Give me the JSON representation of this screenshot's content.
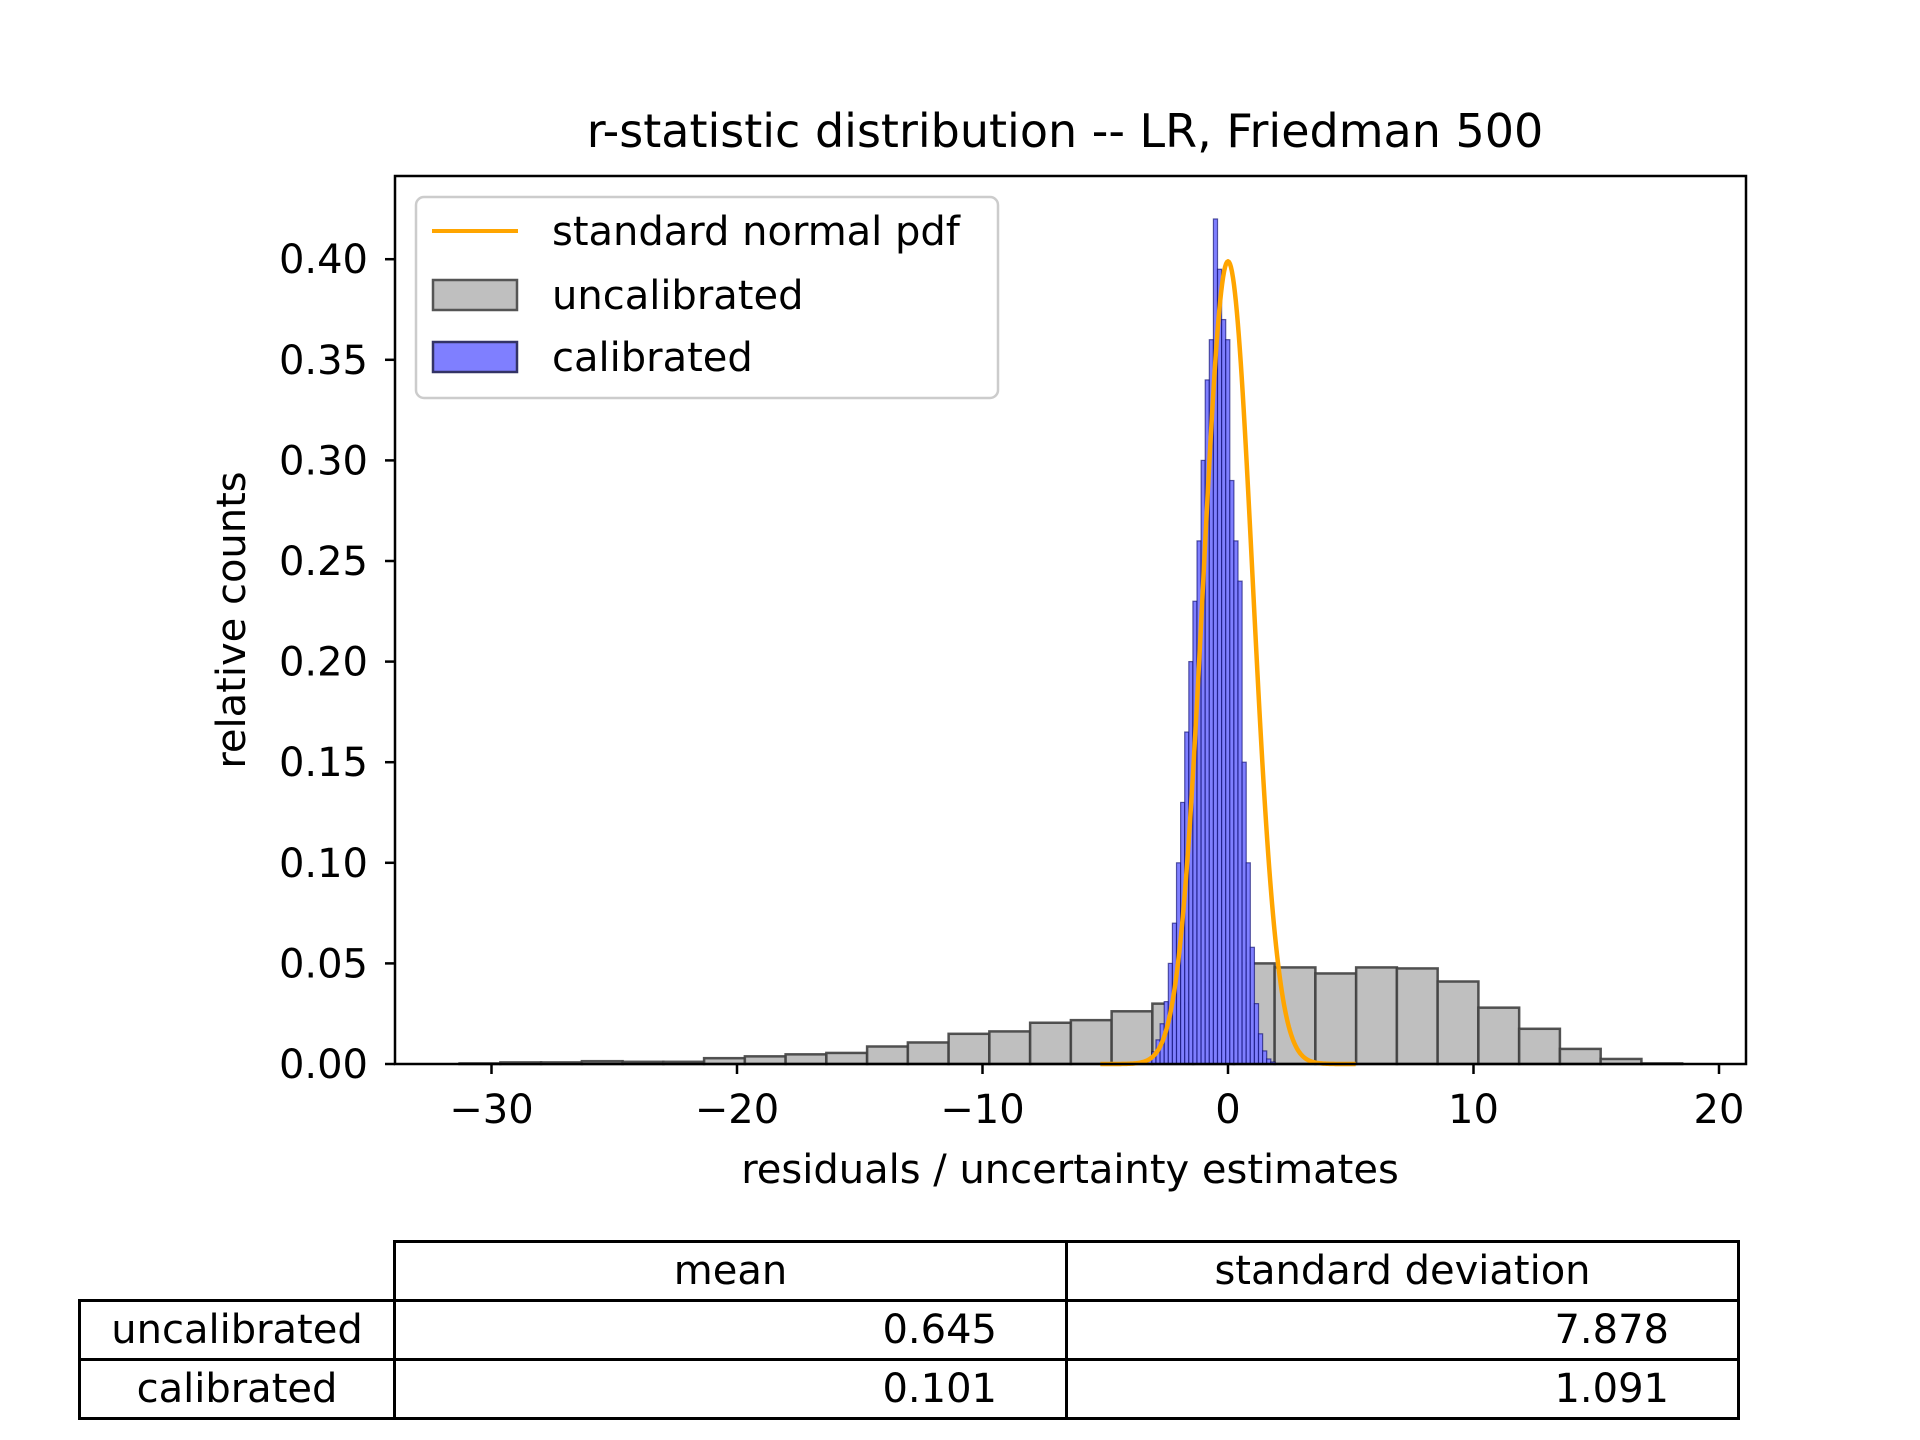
{
  "chart_data": {
    "type": "bar",
    "title": "r-statistic distribution -- LR, Friedman 500",
    "xlabel": "residuals / uncertainty estimates",
    "ylabel": "relative counts",
    "xlim": [
      -34,
      21
    ],
    "ylim": [
      0,
      0.44
    ],
    "xticks": [
      -30,
      -20,
      -10,
      0,
      10,
      20
    ],
    "xtick_labels": [
      "−30",
      "−20",
      "−10",
      "0",
      "10",
      "20"
    ],
    "yticks": [
      0.0,
      0.05,
      0.1,
      0.15,
      0.2,
      0.25,
      0.3,
      0.35,
      0.4
    ],
    "ytick_labels": [
      "0.00",
      "0.05",
      "0.10",
      "0.15",
      "0.20",
      "0.25",
      "0.30",
      "0.35",
      "0.40"
    ],
    "legend": {
      "placement": "top-left",
      "entries": [
        "standard normal pdf",
        "uncalibrated",
        "calibrated"
      ]
    },
    "series": [
      {
        "name": "uncalibrated",
        "color": "#bfbfbf",
        "edge_color": "#404040",
        "bin_start": -31.3,
        "bin_width": 1.66,
        "values": [
          0.0003,
          0.0008,
          0.0008,
          0.0014,
          0.0011,
          0.0011,
          0.0029,
          0.0038,
          0.0048,
          0.0055,
          0.0087,
          0.0107,
          0.015,
          0.0162,
          0.0205,
          0.0218,
          0.0262,
          0.03,
          0.041,
          0.05,
          0.048,
          0.045,
          0.048,
          0.0475,
          0.041,
          0.028,
          0.0175,
          0.0075,
          0.0025,
          0.0003
        ]
      },
      {
        "name": "calibrated",
        "color": "#7f7fff",
        "edge_color": "#000066",
        "bin_start": -3.6,
        "bin_width": 0.167,
        "values": [
          0.0003,
          0.0015,
          0.0025,
          0.006,
          0.012,
          0.02,
          0.031,
          0.05,
          0.07,
          0.1,
          0.13,
          0.165,
          0.2,
          0.23,
          0.26,
          0.3,
          0.34,
          0.36,
          0.42,
          0.395,
          0.37,
          0.36,
          0.29,
          0.26,
          0.24,
          0.15,
          0.1,
          0.058,
          0.03,
          0.015,
          0.0065,
          0.0025,
          0.001
        ]
      },
      {
        "name": "standard normal pdf",
        "type": "line",
        "color": "#ffa500",
        "x_range": [
          -5.2,
          5.2
        ],
        "mean": 0,
        "std": 1
      }
    ]
  },
  "table": {
    "columns": [
      "mean",
      "standard deviation"
    ],
    "rows": [
      {
        "label": "uncalibrated",
        "values": [
          "0.645",
          "7.878"
        ]
      },
      {
        "label": "calibrated",
        "values": [
          "0.101",
          "1.091"
        ]
      }
    ]
  }
}
